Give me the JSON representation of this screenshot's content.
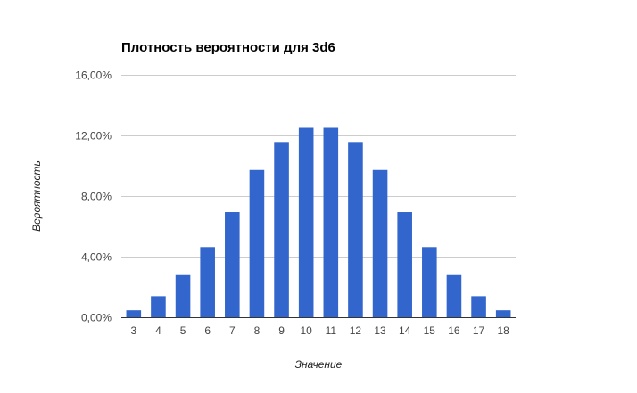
{
  "chart_data": {
    "type": "bar",
    "title": "Плотность вероятности для 3d6",
    "xlabel": "Значение",
    "ylabel": "Вероятность",
    "categories": [
      "3",
      "4",
      "5",
      "6",
      "7",
      "8",
      "9",
      "10",
      "11",
      "12",
      "13",
      "14",
      "15",
      "16",
      "17",
      "18"
    ],
    "values": [
      0.46,
      1.39,
      2.78,
      4.63,
      6.94,
      9.72,
      11.57,
      12.5,
      12.5,
      11.57,
      9.72,
      6.94,
      4.63,
      2.78,
      1.39,
      0.46
    ],
    "ylim": [
      0,
      16
    ],
    "y_ticks": [
      0,
      4,
      8,
      12,
      16
    ],
    "y_tick_labels": [
      "0,00%",
      "4,00%",
      "8,00%",
      "12,00%",
      "16,00%"
    ],
    "grid": true,
    "legend": "none",
    "bar_color": "#3366cc",
    "grid_color": "#cccccc",
    "axis_color": "#333333"
  }
}
